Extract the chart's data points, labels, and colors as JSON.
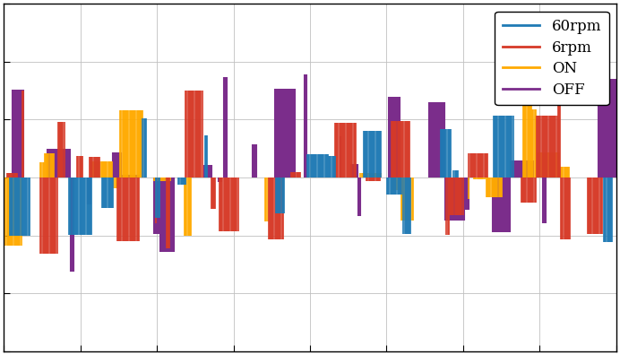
{
  "title": "",
  "xlabel": "",
  "ylabel": "",
  "legend_labels": [
    "60rpm",
    "6rpm",
    "ON",
    "OFF"
  ],
  "colors": [
    "#1f7ab4",
    "#d63a28",
    "#ffaa00",
    "#7B2D8B"
  ],
  "n_samples": 600,
  "ylim": [
    -1.2,
    1.2
  ],
  "xlim": [
    0,
    1
  ],
  "background_color": "#ffffff",
  "legend_fontsize": 12,
  "figsize": [
    6.92,
    3.96
  ],
  "dpi": 100,
  "xtick_count": 9,
  "ytick_count": 7,
  "seeds": [
    10,
    20,
    30,
    40
  ],
  "linewidths": [
    1.2,
    1.2,
    1.2,
    1.5
  ],
  "amplitudes": [
    0.55,
    0.62,
    0.58,
    0.72
  ],
  "sparsity": [
    0.25,
    0.28,
    0.26,
    0.3
  ]
}
